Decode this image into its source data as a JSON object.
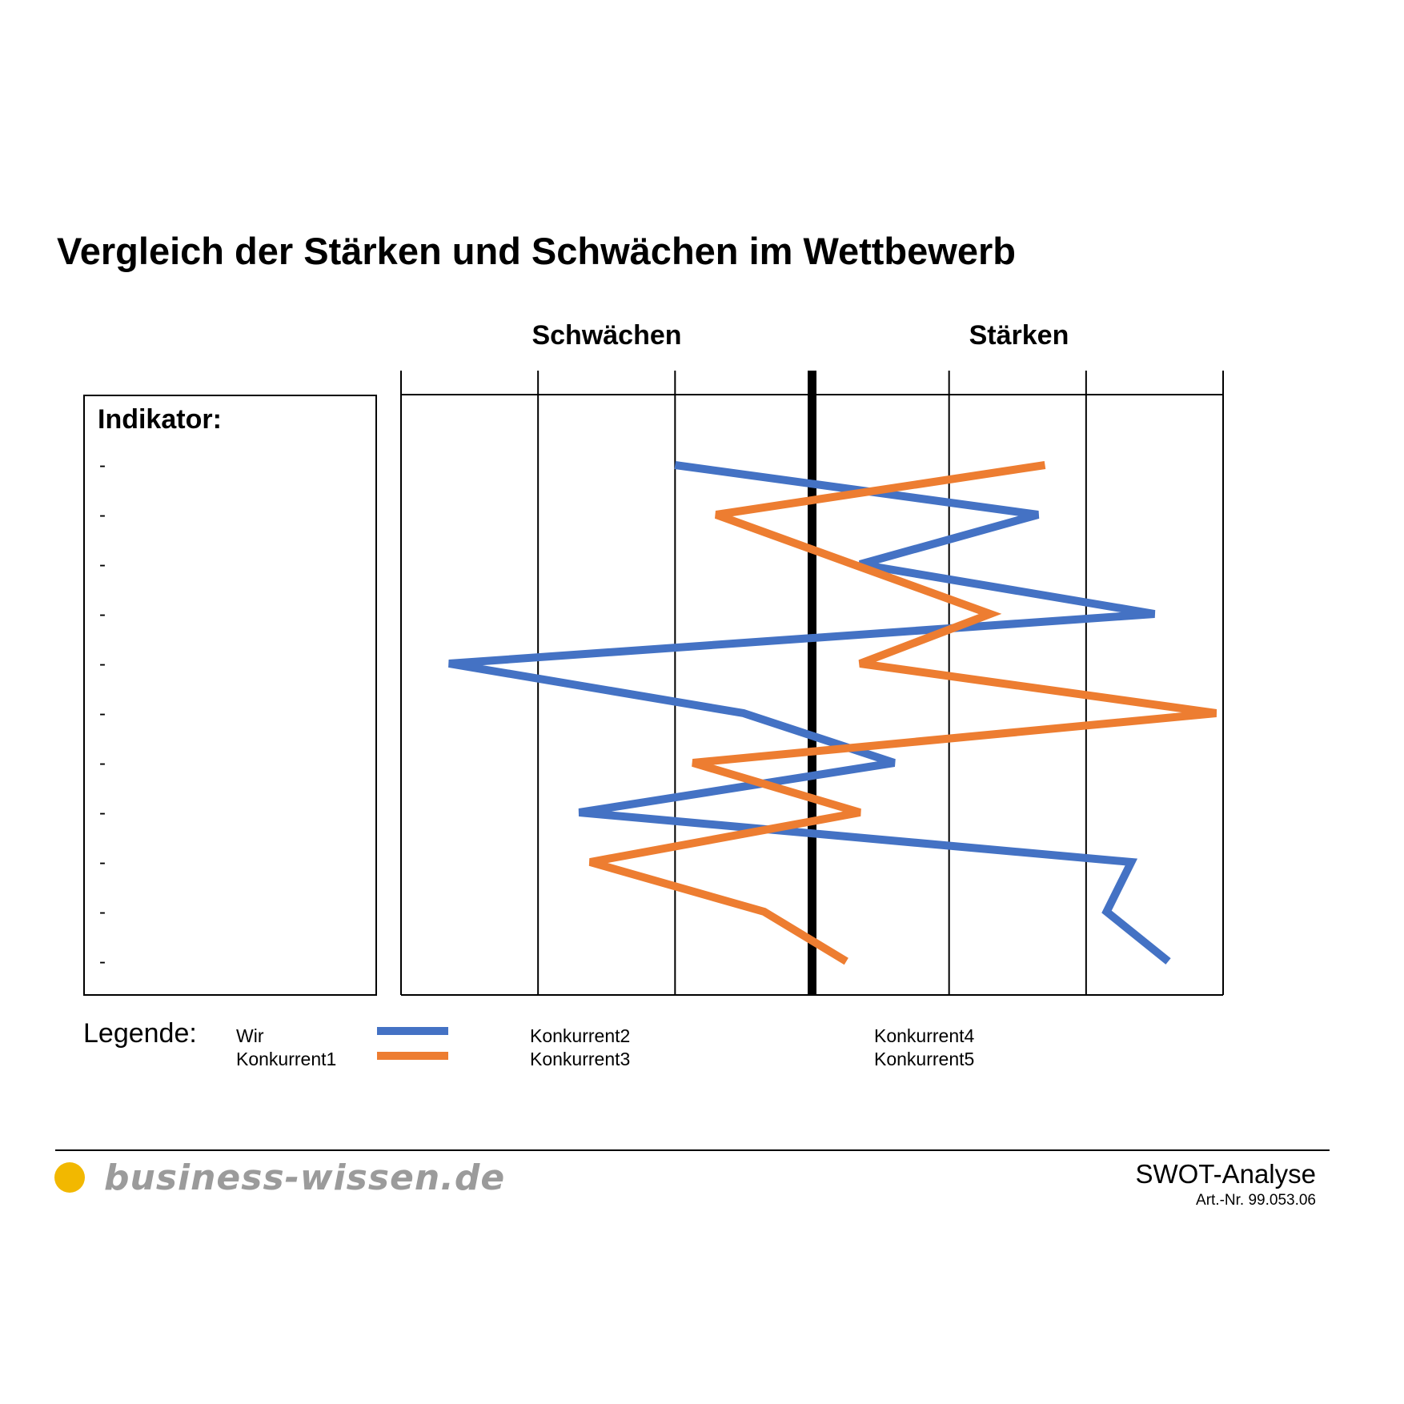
{
  "title": "Vergleich der Stärken und Schwächen im Wettbewerb",
  "colors": {
    "wir": "#4472c4",
    "konkurrent1": "#ed7d31",
    "logo": "#f2b800"
  },
  "indicator": {
    "label": "Indikator:",
    "rows": [
      "-",
      "-",
      "-",
      "-",
      "-",
      "-",
      "-",
      "-",
      "-",
      "-",
      "-"
    ]
  },
  "chart_data": {
    "type": "line",
    "orientation": "vertical-profile",
    "headings": {
      "left": "Schwächen",
      "right": "Stärken"
    },
    "xlim": [
      -3,
      3
    ],
    "gridlines": [
      -3,
      -2,
      -1,
      0,
      1,
      2,
      3
    ],
    "center_line": 0,
    "rows": 11,
    "series": [
      {
        "name": "Wir",
        "color": "#4472c4",
        "values": [
          -1.0,
          1.65,
          0.35,
          2.5,
          -2.65,
          -0.5,
          0.6,
          -1.7,
          2.33,
          2.15,
          2.6
        ]
      },
      {
        "name": "Konkurrent1",
        "color": "#ed7d31",
        "values": [
          1.7,
          -0.7,
          0.3,
          1.3,
          0.35,
          2.95,
          -0.87,
          0.35,
          -1.62,
          -0.35,
          0.25
        ]
      }
    ]
  },
  "legend": {
    "title": "Legende:",
    "items": [
      {
        "label": "Wir",
        "swatch": "#4472c4"
      },
      {
        "label": "Konkurrent1",
        "swatch": "#ed7d31"
      },
      {
        "label": "Konkurrent2"
      },
      {
        "label": "Konkurrent3"
      },
      {
        "label": "Konkurrent4"
      },
      {
        "label": "Konkurrent5"
      }
    ]
  },
  "footer": {
    "logo_text": "business-wissen.de",
    "doc_title": "SWOT-Analyse",
    "art_nr": "Art.-Nr. 99.053.06"
  }
}
